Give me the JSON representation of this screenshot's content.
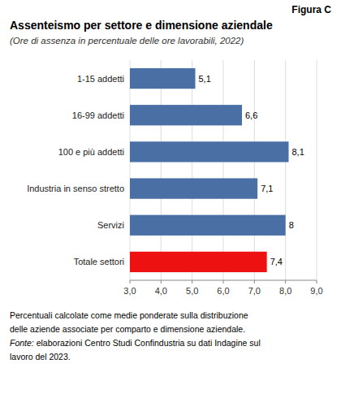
{
  "chart_data": {
    "type": "bar",
    "orientation": "horizontal",
    "annotations": [
      "Figura C"
    ],
    "title": "Assenteismo per settore e dimensione aziendale",
    "subtitle": "(Ore di assenza in percentuale delle ore lavorabili, 2022)",
    "categories": [
      "1-15 addetti",
      "16-99 addetti",
      "100 e più addetti",
      "Industria in senso stretto",
      "Servizi",
      "Totale settori"
    ],
    "values": [
      5.1,
      6.6,
      8.1,
      7.1,
      8.0,
      7.4
    ],
    "value_labels": [
      "5,1",
      "6,6",
      "8,1",
      "7,1",
      "8",
      "7,4"
    ],
    "colors": [
      "#4a6fa5",
      "#4a6fa5",
      "#4a6fa5",
      "#4a6fa5",
      "#4a6fa5",
      "#ee1111"
    ],
    "xlim": [
      3.0,
      9.0
    ],
    "xticks": [
      {
        "value": 3.0,
        "label": "3,0"
      },
      {
        "value": 4.0,
        "label": "4,0"
      },
      {
        "value": 5.0,
        "label": "5,0"
      },
      {
        "value": 6.0,
        "label": "6,0"
      },
      {
        "value": 7.0,
        "label": "7,0"
      },
      {
        "value": 8.0,
        "label": "8,0"
      },
      {
        "value": 9.0,
        "label": "9,0"
      }
    ],
    "grid": true,
    "data_labels": true,
    "footnotes": [
      "Percentuali calcolate come medie ponderate sulla distribuzione",
      "delle aziende associate per comparto e dimensione aziendale.",
      {
        "italic": "Fonte:",
        "text": " elaborazioni Centro Studi Confindustria su dati Indagine sul"
      },
      "lavoro del 2023."
    ]
  }
}
